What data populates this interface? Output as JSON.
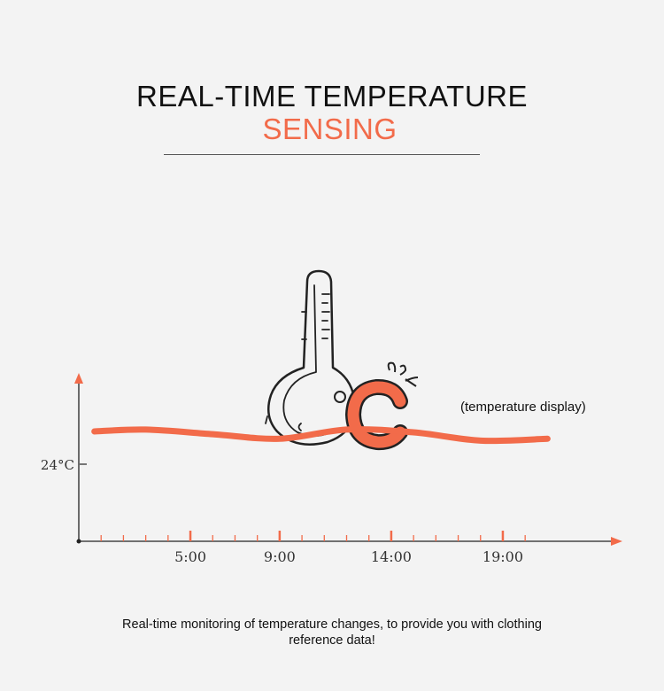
{
  "header": {
    "title_line1": "REAL-TIME TEMPERATURE",
    "title_line2": "SENSING"
  },
  "note": "(temperature display)",
  "caption": {
    "line1": "Real-time monitoring of temperature changes, to provide you with clothing",
    "line2": "reference data!"
  },
  "icons": {
    "thermometer": "thermometer-icon",
    "celsius": "celsius-icon"
  },
  "colors": {
    "accent": "#f26b4a",
    "axis": "#222222",
    "tick": "#f26b4a"
  },
  "chart_data": {
    "type": "line",
    "y_tick_label": "24°C",
    "x_tick_labels": [
      {
        "label": "5:00",
        "x": 5
      },
      {
        "label": "9:00",
        "x": 9
      },
      {
        "label": "14:00",
        "x": 14
      },
      {
        "label": "19:00",
        "x": 19
      }
    ],
    "series": [
      {
        "points": [
          {
            "x": 0.7,
            "y": 24.0
          },
          {
            "x": 3.0,
            "y": 24.1
          },
          {
            "x": 6.0,
            "y": 23.85
          },
          {
            "x": 9.0,
            "y": 23.6
          },
          {
            "x": 12.0,
            "y": 24.1
          },
          {
            "x": 15.0,
            "y": 23.95
          },
          {
            "x": 18.0,
            "y": 23.5
          },
          {
            "x": 21.0,
            "y": 23.6
          }
        ]
      }
    ],
    "xlim": [
      0,
      24
    ],
    "ylim": [
      18,
      27
    ],
    "grid": false
  }
}
